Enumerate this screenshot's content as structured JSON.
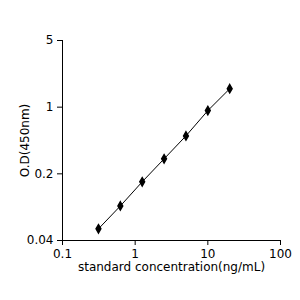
{
  "chart_data": {
    "type": "line",
    "x_label": "standard concentration(ng/mL)",
    "y_label": "O.D(450nm)",
    "x": [
      0.3125,
      0.625,
      1.25,
      2.5,
      5,
      10,
      20
    ],
    "values": [
      0.053,
      0.092,
      0.165,
      0.287,
      0.5,
      0.92,
      1.56
    ],
    "color": "#000000",
    "marker": "diamond",
    "log": true,
    "grid": false,
    "xlim": [
      0.1,
      100
    ],
    "xticks": [
      0.1,
      1,
      10,
      100
    ],
    "ylim": [
      0.04,
      5
    ],
    "yticks": [
      0.04,
      0.2,
      1,
      5
    ]
  }
}
